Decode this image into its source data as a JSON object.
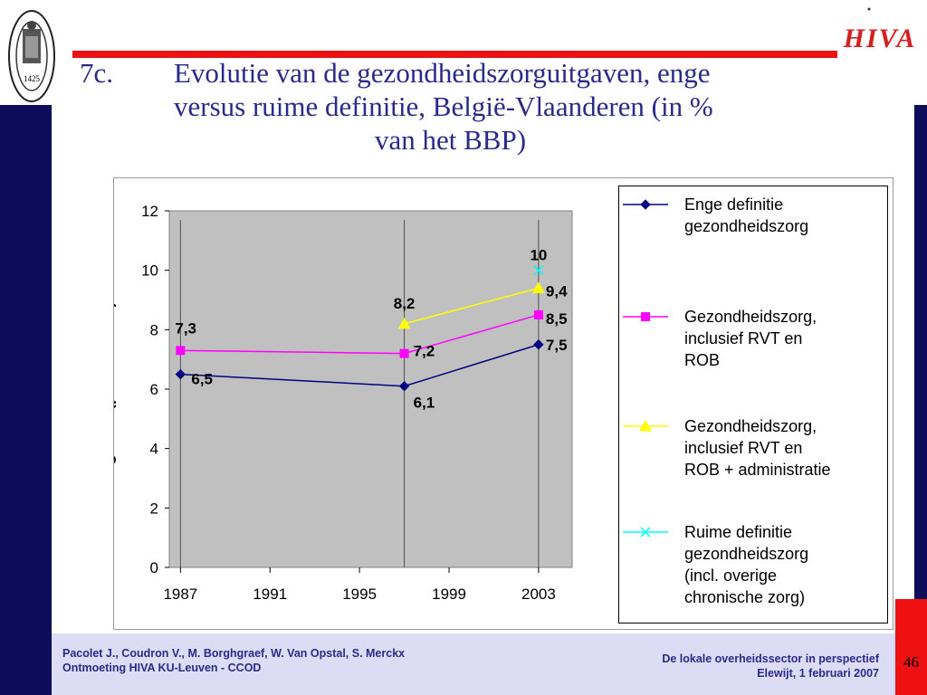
{
  "slide": {
    "number_label": "7c.",
    "title_line1": "Evolutie van de gezondheidszorguitgaven, enge",
    "title_line2": "versus ruime definitie, België-Vlaanderen (in %",
    "title_line3": "van het BBP)",
    "page_number": "46"
  },
  "footer": {
    "authors": "Pacolet J., Coudron V., M. Borghgraef, W. Van Opstal, S. Merckx",
    "event": "Ontmoeting HIVA KU-Leuven - CCOD",
    "context_title": "De lokale overheidssector in perspectief",
    "context_date": "Elewijt, 1 februari 2007"
  },
  "logos": {
    "left_text": "1425",
    "right_text": "HIVA"
  },
  "chart_data": {
    "type": "line",
    "title": "",
    "xlabel": "",
    "ylabel": "uitgaven (procentueel)",
    "x_ticks": [
      1987,
      1991,
      1995,
      1999,
      2003
    ],
    "y_ticks": [
      0,
      2,
      4,
      6,
      8,
      10,
      12
    ],
    "xlim": [
      1986.5,
      2004.5
    ],
    "ylim": [
      0,
      12
    ],
    "grid": "vertical lines at data points",
    "plot_background": "#c0c0c0",
    "legend_placement": "right",
    "series": [
      {
        "name": "Enge definitie\ngezondheidszorg",
        "color": "#000080",
        "marker": "diamond",
        "x": [
          1987,
          1997,
          2003
        ],
        "y": [
          6.5,
          6.1,
          7.5
        ],
        "labels": [
          "6,5",
          "6,1",
          "7,5"
        ]
      },
      {
        "name": "Gezondheidszorg,\ninclusief RVT en\nROB",
        "color": "#ff00ff",
        "marker": "square",
        "x": [
          1987,
          1997,
          2003
        ],
        "y": [
          7.3,
          7.2,
          8.5
        ],
        "labels": [
          "7,3",
          "7,2",
          "8,5"
        ]
      },
      {
        "name": "Gezondheidszorg,\ninclusief RVT en\nROB + administratie",
        "color": "#ffff00",
        "marker": "triangle",
        "x": [
          1997,
          2003
        ],
        "y": [
          8.2,
          9.4
        ],
        "labels": [
          "8,2",
          "9,4"
        ]
      },
      {
        "name": "Ruime definitie\ngezondheidszorg\n(incl. overige\nchronische zorg)",
        "color": "#00ffff",
        "marker": "x",
        "x": [
          2003
        ],
        "y": [
          10
        ],
        "labels": [
          "10"
        ]
      }
    ]
  }
}
